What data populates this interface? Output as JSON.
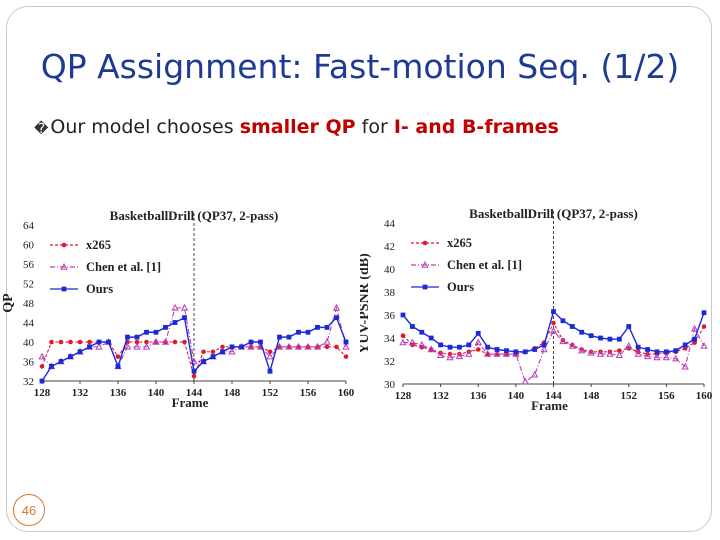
{
  "slide": {
    "title": "QP Assignment: Fast-motion Seq. (1/2)",
    "bullet_glyph": "�",
    "bullet_parts": [
      "Our model chooses ",
      "smaller QP",
      " for ",
      "I- and B-frames"
    ],
    "page_number": "46"
  },
  "colors": {
    "x265": "#e0182d",
    "chen": "#b83db8",
    "ours": "#1a2ad6",
    "title": "#1f3a93",
    "highlight": "#c00000"
  },
  "chart_data": [
    {
      "type": "line",
      "title": "BasketballDrill (QP37, 2-pass)",
      "xlabel": "Frame",
      "ylabel": "QP",
      "xlim": [
        128,
        160
      ],
      "ylim": [
        32,
        64
      ],
      "xticks": [
        128,
        132,
        136,
        140,
        144,
        148,
        152,
        156,
        160
      ],
      "yticks": [
        32,
        36,
        40,
        44,
        48,
        52,
        56,
        60,
        64
      ],
      "vline": 144,
      "legend": "top-left",
      "x": [
        128,
        129,
        130,
        131,
        132,
        133,
        134,
        135,
        136,
        137,
        138,
        139,
        140,
        141,
        142,
        143,
        144,
        145,
        146,
        147,
        148,
        149,
        150,
        151,
        152,
        153,
        154,
        155,
        156,
        157,
        158,
        159,
        160
      ],
      "series": [
        {
          "name": "x265",
          "values": [
            35,
            40,
            40,
            40,
            40,
            40,
            40,
            40,
            37,
            40,
            40,
            40,
            40,
            40,
            40,
            40,
            33,
            38,
            38,
            39,
            39,
            39,
            39,
            39,
            38,
            39,
            39,
            39,
            39,
            39,
            39,
            39,
            37
          ]
        },
        {
          "name": "Chen et al. [1]",
          "values": [
            37,
            35,
            36,
            37,
            38,
            39,
            39,
            40,
            35,
            39,
            39,
            39,
            40,
            40,
            47,
            47,
            36,
            36,
            37,
            38,
            38,
            39,
            39,
            39,
            37,
            39,
            39,
            39,
            39,
            39,
            40,
            47,
            39
          ]
        },
        {
          "name": "Ours",
          "values": [
            32,
            35,
            36,
            37,
            38,
            39,
            40,
            40,
            35,
            41,
            41,
            42,
            42,
            43,
            44,
            45,
            34,
            36,
            37,
            38,
            39,
            39,
            40,
            40,
            34,
            41,
            41,
            42,
            42,
            43,
            43,
            45,
            40
          ]
        }
      ]
    },
    {
      "type": "line",
      "title": "BasketballDrill (QP37, 2-pass)",
      "xlabel": "Frame",
      "ylabel": "YUV-PSNR (dB)",
      "xlim": [
        128,
        160
      ],
      "ylim": [
        30,
        44
      ],
      "xticks": [
        128,
        132,
        136,
        140,
        144,
        148,
        152,
        156,
        160
      ],
      "yticks": [
        30,
        32,
        34,
        36,
        38,
        40,
        42,
        44
      ],
      "vline": 144,
      "legend": "top-left",
      "x": [
        128,
        129,
        130,
        131,
        132,
        133,
        134,
        135,
        136,
        137,
        138,
        139,
        140,
        141,
        142,
        143,
        144,
        145,
        146,
        147,
        148,
        149,
        150,
        151,
        152,
        153,
        154,
        155,
        156,
        157,
        158,
        159,
        160
      ],
      "series": [
        {
          "name": "x265",
          "values": [
            34.2,
            33.4,
            33.2,
            33.0,
            32.7,
            32.6,
            32.6,
            32.8,
            33.0,
            32.6,
            32.6,
            32.6,
            32.6,
            32.8,
            33.1,
            33.6,
            35.3,
            33.8,
            33.4,
            33.0,
            32.8,
            32.8,
            32.8,
            32.9,
            33.1,
            32.8,
            32.6,
            32.6,
            32.7,
            32.8,
            33.1,
            33.6,
            35.0
          ]
        },
        {
          "name": "Chen et al. [1]",
          "values": [
            33.6,
            33.6,
            33.4,
            33.0,
            32.5,
            32.3,
            32.4,
            32.6,
            33.6,
            32.6,
            32.6,
            32.6,
            32.6,
            30.2,
            30.8,
            33.0,
            34.6,
            33.7,
            33.3,
            32.9,
            32.7,
            32.6,
            32.6,
            32.5,
            33.3,
            32.6,
            32.4,
            32.3,
            32.3,
            32.2,
            31.5,
            34.8,
            33.3
          ]
        },
        {
          "name": "Ours",
          "values": [
            36.0,
            35.0,
            34.5,
            34.0,
            33.4,
            33.2,
            33.2,
            33.4,
            34.4,
            33.2,
            33.0,
            32.9,
            32.8,
            32.8,
            33.0,
            33.4,
            36.3,
            35.5,
            35.0,
            34.5,
            34.2,
            34.0,
            33.9,
            33.9,
            35.0,
            33.2,
            33.0,
            32.8,
            32.8,
            32.9,
            33.4,
            33.9,
            36.2
          ]
        }
      ]
    }
  ]
}
